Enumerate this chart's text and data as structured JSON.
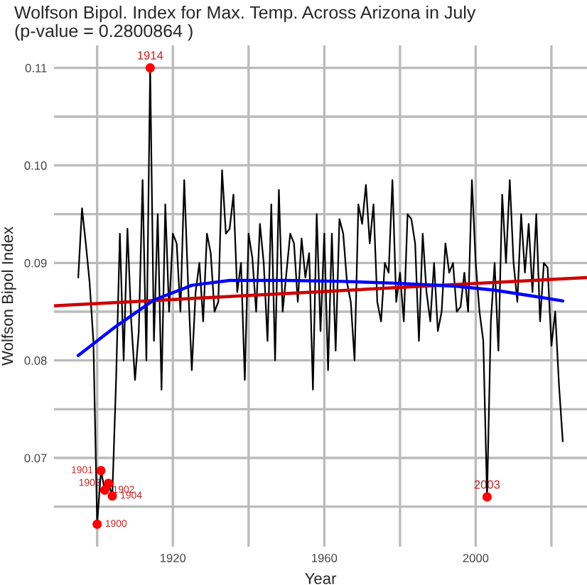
{
  "chart_data": {
    "type": "line",
    "title": "Wolfson Bipol. Index for Max. Temp. Across Arizona in July",
    "subtitle": "(p-value = 0.2800864 )",
    "xlabel": "Year",
    "ylabel": "Wolfson Bipol Index",
    "xlim": [
      1888.6,
      2029.4
    ],
    "ylim": [
      0.0609,
      0.1123
    ],
    "xticks": [
      {
        "value": 1900,
        "label": null
      },
      {
        "value": 1920,
        "label": "1920"
      },
      {
        "value": 1940,
        "label": null
      },
      {
        "value": 1960,
        "label": "1960"
      },
      {
        "value": 1980,
        "label": null
      },
      {
        "value": 2000,
        "label": "2000"
      },
      {
        "value": 2020,
        "label": null
      }
    ],
    "yticks": [
      {
        "value": 0.065,
        "label": null
      },
      {
        "value": 0.07,
        "label": "0.07"
      },
      {
        "value": 0.075,
        "label": null
      },
      {
        "value": 0.08,
        "label": "0.08"
      },
      {
        "value": 0.085,
        "label": null
      },
      {
        "value": 0.09,
        "label": "0.09"
      },
      {
        "value": 0.095,
        "label": null
      },
      {
        "value": 0.1,
        "label": "0.10"
      },
      {
        "value": 0.105,
        "label": null
      },
      {
        "value": 0.11,
        "label": "0.11"
      }
    ],
    "grid": true,
    "series": [
      {
        "color": "#000000",
        "x": [
          1895,
          1896,
          1897,
          1898,
          1899,
          1900,
          1901,
          1902,
          1903,
          1904,
          1905,
          1906,
          1907,
          1908,
          1909,
          1910,
          1911,
          1912,
          1913,
          1914,
          1915,
          1916,
          1917,
          1918,
          1919,
          1920,
          1921,
          1922,
          1923,
          1924,
          1925,
          1926,
          1927,
          1928,
          1929,
          1930,
          1931,
          1932,
          1933,
          1934,
          1935,
          1936,
          1937,
          1938,
          1939,
          1940,
          1941,
          1942,
          1943,
          1944,
          1945,
          1946,
          1947,
          1948,
          1949,
          1950,
          1951,
          1952,
          1953,
          1954,
          1955,
          1956,
          1957,
          1958,
          1959,
          1960,
          1961,
          1962,
          1963,
          1964,
          1965,
          1966,
          1967,
          1968,
          1969,
          1970,
          1971,
          1972,
          1973,
          1974,
          1975,
          1976,
          1977,
          1978,
          1979,
          1980,
          1981,
          1982,
          1983,
          1984,
          1985,
          1986,
          1987,
          1988,
          1989,
          1990,
          1991,
          1992,
          1993,
          1994,
          1995,
          1996,
          1997,
          1998,
          1999,
          2000,
          2001,
          2002,
          2003,
          2004,
          2005,
          2006,
          2007,
          2008,
          2009,
          2010,
          2011,
          2012,
          2013,
          2014,
          2015,
          2016,
          2017,
          2018,
          2019,
          2020,
          2021,
          2022,
          2023
        ],
        "values": [
          0.0885,
          0.0956,
          0.092,
          0.088,
          0.082,
          0.0632,
          0.0687,
          0.0667,
          0.0674,
          0.0661,
          0.078,
          0.093,
          0.08,
          0.0935,
          0.084,
          0.078,
          0.083,
          0.0985,
          0.08,
          0.11,
          0.082,
          0.095,
          0.077,
          0.096,
          0.085,
          0.093,
          0.092,
          0.085,
          0.0985,
          0.088,
          0.079,
          0.087,
          0.09,
          0.084,
          0.093,
          0.091,
          0.085,
          0.086,
          0.0995,
          0.093,
          0.0935,
          0.097,
          0.087,
          0.09,
          0.078,
          0.093,
          0.0905,
          0.085,
          0.094,
          0.09,
          0.082,
          0.096,
          0.08,
          0.0975,
          0.085,
          0.089,
          0.093,
          0.092,
          0.086,
          0.0925,
          0.0885,
          0.091,
          0.077,
          0.095,
          0.083,
          0.093,
          0.079,
          0.093,
          0.081,
          0.0945,
          0.093,
          0.088,
          0.086,
          0.08,
          0.096,
          0.094,
          0.098,
          0.092,
          0.096,
          0.086,
          0.084,
          0.09,
          0.089,
          0.0985,
          0.086,
          0.089,
          0.084,
          0.095,
          0.0945,
          0.092,
          0.082,
          0.093,
          0.087,
          0.084,
          0.09,
          0.083,
          0.085,
          0.092,
          0.089,
          0.09,
          0.085,
          0.0855,
          0.089,
          0.085,
          0.0985,
          0.09,
          0.085,
          0.082,
          0.066,
          0.084,
          0.09,
          0.081,
          0.097,
          0.09,
          0.0985,
          0.09,
          0.086,
          0.095,
          0.089,
          0.094,
          0.087,
          0.095,
          0.084,
          0.09,
          0.0895,
          0.0815,
          0.085,
          0.0775,
          0.0717
        ]
      },
      {
        "color": "#cc0000",
        "x": [
          1888.6,
          2029.4
        ],
        "values": [
          0.0856,
          0.0885
        ]
      },
      {
        "color": "#0000ff",
        "x": [
          1895,
          1905,
          1915,
          1925,
          1935,
          1950,
          1965,
          1980,
          1995,
          2005,
          2015,
          2023
        ],
        "values": [
          0.0805,
          0.0835,
          0.0862,
          0.0877,
          0.0882,
          0.0882,
          0.0881,
          0.0879,
          0.0876,
          0.0872,
          0.0866,
          0.0861
        ]
      },
      {
        "type": "scatter",
        "color": "#ff0000",
        "marker": "circle",
        "x": [
          1900,
          1901,
          1902,
          1903,
          1904,
          1914,
          2003
        ],
        "values": [
          0.0632,
          0.0687,
          0.0667,
          0.0674,
          0.0661,
          0.11,
          0.066
        ]
      }
    ],
    "annotations": [
      {
        "text": "1900",
        "x": 1900,
        "y": 0.0632
      },
      {
        "text": "1901",
        "x": 1901,
        "y": 0.0687
      },
      {
        "text": "1902",
        "x": 1902,
        "y": 0.0667
      },
      {
        "text": "1903",
        "x": 1903,
        "y": 0.0674
      },
      {
        "text": "1904",
        "x": 1904,
        "y": 0.0661
      },
      {
        "text": "1914",
        "x": 1914,
        "y": 0.11
      },
      {
        "text": "2003",
        "x": 2003,
        "y": 0.066
      }
    ]
  }
}
